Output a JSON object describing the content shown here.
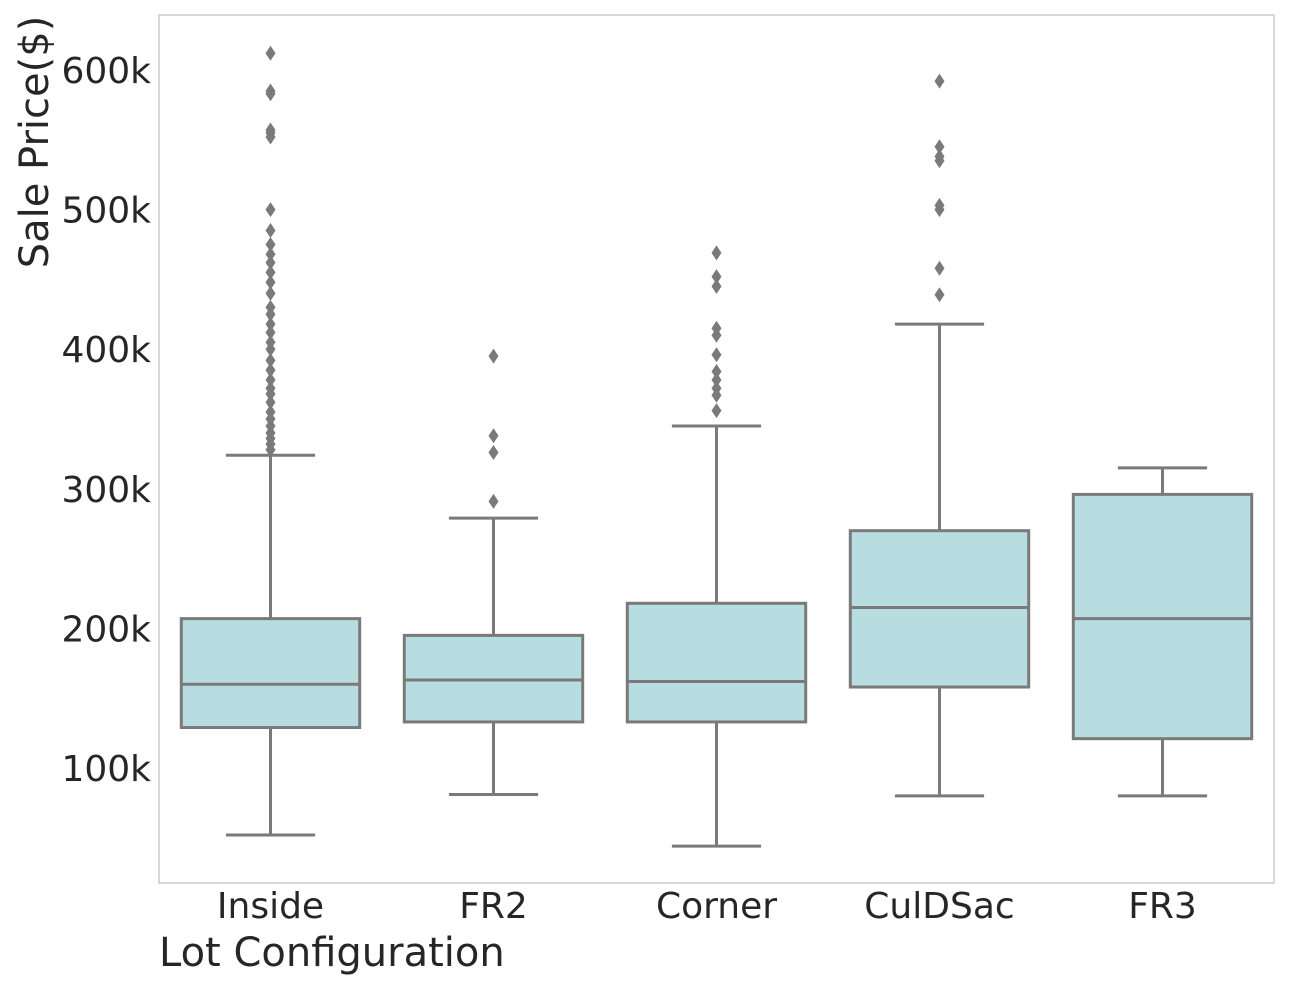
{
  "chart_data": {
    "type": "box",
    "title": "",
    "xlabel": "Lot Configuration",
    "ylabel": "Sale Price($)",
    "ylim": [
      15000,
      635000
    ],
    "yticks": [
      {
        "value": 100000,
        "label": "100k"
      },
      {
        "value": 200000,
        "label": "200k"
      },
      {
        "value": 300000,
        "label": "300k"
      },
      {
        "value": 400000,
        "label": "400k"
      },
      {
        "value": 500000,
        "label": "500k"
      },
      {
        "value": 600000,
        "label": "600k"
      }
    ],
    "grid": false,
    "colors": {
      "box_fill": "#b8dde1",
      "line": "#7a7a7a",
      "frame": "#cccccc",
      "text": "#262626"
    },
    "series": [
      {
        "category": "Inside",
        "whisker_low": 52000,
        "q1": 129000,
        "median": 160000,
        "q3": 207000,
        "whisker_high": 324000,
        "outliers": [
          612000,
          585000,
          583000,
          557000,
          555000,
          552000,
          500000,
          485000,
          475000,
          468000,
          462000,
          455000,
          448000,
          440000,
          430000,
          425000,
          418000,
          412000,
          405000,
          400000,
          392000,
          385000,
          378000,
          372000,
          368000,
          362000,
          355000,
          350000,
          345000,
          340000,
          336000,
          332000,
          328000
        ]
      },
      {
        "category": "FR2",
        "whisker_low": 81000,
        "q1": 133000,
        "median": 163000,
        "q3": 195000,
        "whisker_high": 279000,
        "outliers": [
          395000,
          338000,
          326000,
          291000
        ]
      },
      {
        "category": "Corner",
        "whisker_low": 44000,
        "q1": 133000,
        "median": 162000,
        "q3": 218000,
        "whisker_high": 345000,
        "outliers": [
          469000,
          452000,
          445000,
          415000,
          410000,
          396000,
          384000,
          378000,
          372000,
          367000,
          356000
        ]
      },
      {
        "category": "CulDSac",
        "whisker_low": 80000,
        "q1": 158000,
        "median": 215000,
        "q3": 270000,
        "whisker_high": 418000,
        "outliers": [
          592000,
          545000,
          538000,
          535000,
          503000,
          500000,
          458000,
          439000
        ]
      },
      {
        "category": "FR3",
        "whisker_low": 80000,
        "q1": 121000,
        "median": 207000,
        "q3": 296000,
        "whisker_high": 315000,
        "outliers": []
      }
    ]
  }
}
